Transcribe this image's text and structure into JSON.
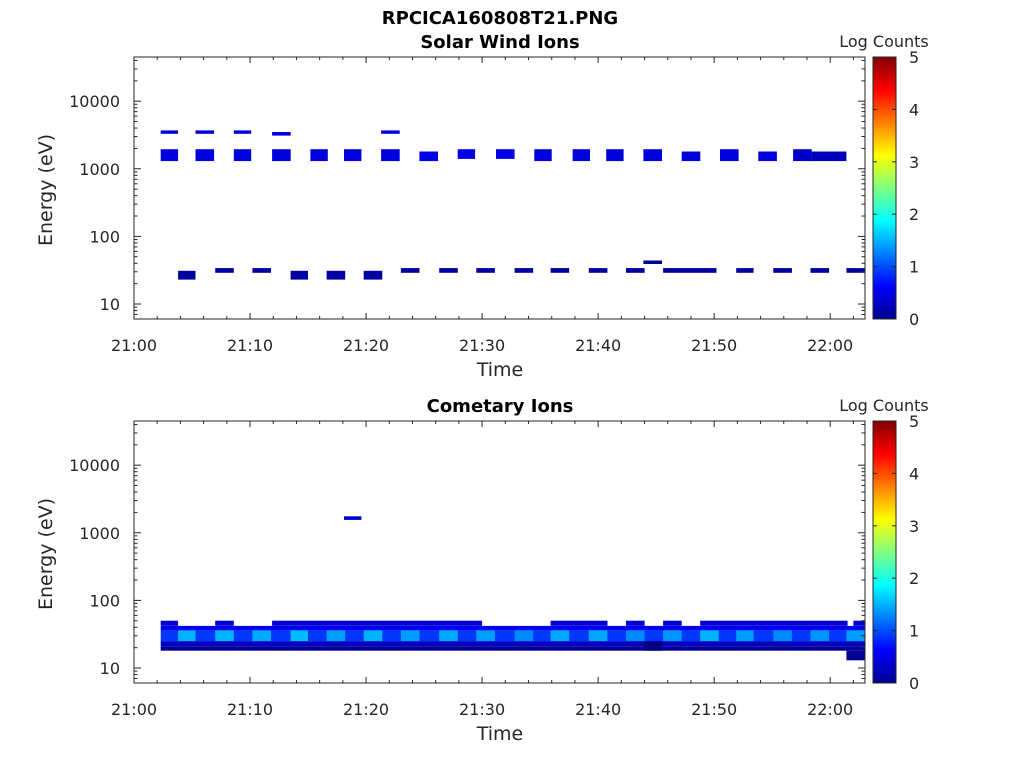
{
  "page_title": "RPCICA160808T21.PNG",
  "colors": {
    "axis": "#262626",
    "colormap": "jet",
    "background": "#ffffff"
  },
  "chart_data": [
    {
      "type": "heatmap",
      "title": "Solar Wind Ions",
      "xlabel": "Time",
      "ylabel": "Energy (eV)",
      "x_ticks": [
        "21:00",
        "21:10",
        "21:20",
        "21:30",
        "21:40",
        "21:50",
        "22:00"
      ],
      "x_range_minutes": [
        0,
        63
      ],
      "y_ticks": [
        "10",
        "100",
        "1000",
        "10000"
      ],
      "y_scale": "log",
      "y_range": [
        6,
        45000
      ],
      "colorbar": {
        "label": "Log Counts",
        "range": [
          0,
          5
        ],
        "ticks": [
          "0",
          "1",
          "2",
          "3",
          "4",
          "5"
        ]
      },
      "cells": [
        [
          2.3,
          3.8,
          3300,
          3700,
          0.45
        ],
        [
          5.3,
          6.9,
          3300,
          3700,
          0.45
        ],
        [
          8.6,
          10.1,
          3300,
          3700,
          0.45
        ],
        [
          11.9,
          13.5,
          3100,
          3500,
          0.45
        ],
        [
          21.3,
          22.9,
          3300,
          3700,
          0.5
        ],
        [
          2.3,
          3.8,
          1300,
          1950,
          0.45
        ],
        [
          5.3,
          6.9,
          1300,
          1950,
          0.45
        ],
        [
          8.6,
          10.1,
          1300,
          1950,
          0.45
        ],
        [
          11.9,
          13.5,
          1300,
          1950,
          0.45
        ],
        [
          15.2,
          16.7,
          1300,
          1950,
          0.45
        ],
        [
          18.1,
          19.6,
          1300,
          1950,
          0.45
        ],
        [
          21.3,
          22.9,
          1300,
          1950,
          0.45
        ],
        [
          24.6,
          26.2,
          1300,
          1800,
          0.5
        ],
        [
          27.9,
          29.4,
          1400,
          1950,
          0.5
        ],
        [
          31.2,
          32.8,
          1400,
          1950,
          0.5
        ],
        [
          34.5,
          36.0,
          1300,
          1950,
          0.45
        ],
        [
          37.8,
          39.3,
          1300,
          1950,
          0.45
        ],
        [
          40.7,
          42.2,
          1300,
          1950,
          0.45
        ],
        [
          43.9,
          45.5,
          1300,
          1950,
          0.45
        ],
        [
          47.2,
          48.8,
          1300,
          1800,
          0.45
        ],
        [
          50.5,
          52.1,
          1300,
          1950,
          0.45
        ],
        [
          53.8,
          55.4,
          1300,
          1800,
          0.45
        ],
        [
          56.8,
          58.4,
          1300,
          1950,
          0.35
        ],
        [
          58.4,
          61.4,
          1300,
          1800,
          0.3
        ],
        [
          3.8,
          5.3,
          23,
          31,
          0.15
        ],
        [
          7.0,
          8.6,
          29,
          34,
          0.15
        ],
        [
          10.2,
          11.8,
          29,
          34,
          0.15
        ],
        [
          13.5,
          15.0,
          23,
          31,
          0.15
        ],
        [
          16.6,
          18.2,
          23,
          31,
          0.15
        ],
        [
          19.8,
          21.4,
          23,
          31,
          0.15
        ],
        [
          23.0,
          24.6,
          29,
          34,
          0.15
        ],
        [
          26.3,
          27.9,
          29,
          34,
          0.15
        ],
        [
          29.5,
          31.1,
          29,
          34,
          0.15
        ],
        [
          32.8,
          34.4,
          29,
          34,
          0.15
        ],
        [
          35.9,
          37.5,
          29,
          34,
          0.15
        ],
        [
          39.2,
          40.8,
          29,
          34,
          0.15
        ],
        [
          42.4,
          44.0,
          29,
          34,
          0.15
        ],
        [
          43.9,
          45.5,
          39,
          44,
          0.15
        ],
        [
          45.6,
          50.2,
          29,
          34,
          0.15
        ],
        [
          51.9,
          53.4,
          29,
          34,
          0.15
        ],
        [
          55.1,
          56.7,
          29,
          34,
          0.15
        ],
        [
          58.3,
          59.9,
          29,
          34,
          0.15
        ],
        [
          61.4,
          63.0,
          29,
          34,
          0.15
        ]
      ]
    },
    {
      "type": "heatmap",
      "title": "Cometary Ions",
      "xlabel": "Time",
      "ylabel": "Energy (eV)",
      "x_ticks": [
        "21:00",
        "21:10",
        "21:20",
        "21:30",
        "21:40",
        "21:50",
        "22:00"
      ],
      "x_range_minutes": [
        0,
        63
      ],
      "y_ticks": [
        "10",
        "100",
        "1000",
        "10000"
      ],
      "y_scale": "log",
      "y_range": [
        6,
        45000
      ],
      "colorbar": {
        "label": "Log Counts",
        "range": [
          0,
          5
        ],
        "ticks": [
          "0",
          "1",
          "2",
          "3",
          "4",
          "5"
        ]
      },
      "cells": [
        [
          18.1,
          19.6,
          1550,
          1750,
          0.4
        ],
        [
          2.3,
          63.0,
          18,
          21,
          0.12
        ],
        [
          2.3,
          63.0,
          21,
          25,
          0.3
        ],
        [
          2.3,
          63.0,
          25,
          36,
          0.9
        ],
        [
          2.3,
          63.0,
          36,
          42,
          0.55
        ],
        [
          2.3,
          3.8,
          42,
          50,
          0.4
        ],
        [
          7.0,
          8.6,
          42,
          50,
          0.4
        ],
        [
          11.9,
          30.0,
          42,
          50,
          0.4
        ],
        [
          35.9,
          40.8,
          42,
          50,
          0.4
        ],
        [
          42.4,
          44.0,
          42,
          50,
          0.4
        ],
        [
          45.6,
          47.2,
          42,
          50,
          0.4
        ],
        [
          48.8,
          61.5,
          42,
          50,
          0.4
        ],
        [
          62.0,
          63.0,
          42,
          50,
          0.4
        ],
        [
          3.8,
          5.3,
          25,
          36,
          1.5
        ],
        [
          7.0,
          8.6,
          25,
          36,
          1.5
        ],
        [
          10.2,
          11.8,
          25,
          36,
          1.45
        ],
        [
          13.5,
          15.0,
          25,
          36,
          1.55
        ],
        [
          16.6,
          18.2,
          25,
          36,
          1.4
        ],
        [
          19.8,
          21.4,
          25,
          36,
          1.5
        ],
        [
          23.0,
          24.6,
          25,
          36,
          1.4
        ],
        [
          26.3,
          27.9,
          25,
          36,
          1.45
        ],
        [
          29.5,
          31.1,
          25,
          36,
          1.4
        ],
        [
          32.8,
          34.4,
          25,
          36,
          1.3
        ],
        [
          35.9,
          37.5,
          25,
          36,
          1.45
        ],
        [
          39.2,
          40.8,
          25,
          36,
          1.45
        ],
        [
          42.4,
          44.0,
          25,
          36,
          1.3
        ],
        [
          45.6,
          47.2,
          25,
          36,
          1.35
        ],
        [
          48.8,
          50.4,
          25,
          36,
          1.5
        ],
        [
          51.9,
          53.4,
          25,
          36,
          1.4
        ],
        [
          55.1,
          56.7,
          25,
          36,
          1.3
        ],
        [
          58.3,
          59.9,
          25,
          36,
          1.35
        ],
        [
          61.4,
          63.0,
          25,
          36,
          1.4
        ],
        [
          43.9,
          45.5,
          18,
          25,
          0.0
        ],
        [
          61.4,
          63.0,
          13,
          18,
          0.1
        ]
      ]
    }
  ]
}
